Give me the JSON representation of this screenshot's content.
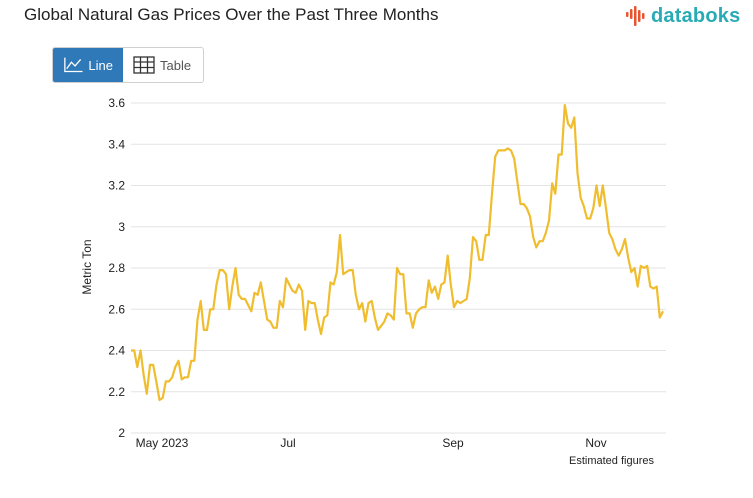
{
  "header": {
    "title": "Global Natural Gas Prices Over the Past Three Months",
    "brand": "databoks"
  },
  "toggle": {
    "line_label": "Line",
    "table_label": "Table",
    "active": "Line"
  },
  "colors": {
    "line": "#f0bd2f",
    "active_button": "#2f79b8",
    "brand": "#29abb5",
    "grid": "#e3e3e3"
  },
  "chart_data": {
    "type": "line",
    "title": "Global Natural Gas Prices Over the Past Three Months",
    "ylabel": "Metric Ton",
    "xlabel": "",
    "ylim": [
      2,
      3.6
    ],
    "yticks": [
      "2",
      "2.2",
      "2.4",
      "2.6",
      "2.8",
      "3",
      "3.2",
      "3.4",
      "3.6"
    ],
    "xticks": [
      "May 2023",
      "Jul",
      "Sep",
      "Nov"
    ],
    "note": "Estimated figures",
    "grid": true,
    "series": [
      {
        "values": [
          2.4,
          2.4,
          2.32,
          2.4,
          2.28,
          2.19,
          2.33,
          2.33,
          2.25,
          2.16,
          2.17,
          2.25,
          2.25,
          2.27,
          2.32,
          2.35,
          2.26,
          2.27,
          2.27,
          2.35,
          2.35,
          2.55,
          2.64,
          2.5,
          2.5,
          2.6,
          2.6,
          2.72,
          2.79,
          2.79,
          2.77,
          2.6,
          2.71,
          2.8,
          2.67,
          2.65,
          2.65,
          2.62,
          2.59,
          2.68,
          2.67,
          2.73,
          2.64,
          2.55,
          2.54,
          2.51,
          2.51,
          2.64,
          2.61,
          2.75,
          2.72,
          2.69,
          2.68,
          2.72,
          2.69,
          2.5,
          2.64,
          2.63,
          2.63,
          2.55,
          2.48,
          2.56,
          2.57,
          2.73,
          2.72,
          2.78,
          2.96,
          2.77,
          2.78,
          2.79,
          2.79,
          2.67,
          2.6,
          2.63,
          2.54,
          2.63,
          2.64,
          2.56,
          2.5,
          2.52,
          2.54,
          2.58,
          2.57,
          2.55,
          2.8,
          2.77,
          2.77,
          2.58,
          2.58,
          2.51,
          2.58,
          2.6,
          2.61,
          2.61,
          2.74,
          2.68,
          2.71,
          2.65,
          2.72,
          2.73,
          2.86,
          2.72,
          2.61,
          2.64,
          2.63,
          2.64,
          2.65,
          2.75,
          2.95,
          2.93,
          2.84,
          2.84,
          2.96,
          2.96,
          3.16,
          3.34,
          3.37,
          3.37,
          3.37,
          3.38,
          3.37,
          3.33,
          3.22,
          3.11,
          3.11,
          3.09,
          3.05,
          2.95,
          2.9,
          2.93,
          2.93,
          2.97,
          3.03,
          3.21,
          3.16,
          3.35,
          3.35,
          3.59,
          3.5,
          3.48,
          3.53,
          3.26,
          3.14,
          3.1,
          3.04,
          3.04,
          3.09,
          3.2,
          3.1,
          3.2,
          3.09,
          2.97,
          2.94,
          2.89,
          2.86,
          2.89,
          2.94,
          2.85,
          2.78,
          2.8,
          2.71,
          2.81,
          2.8,
          2.81,
          2.71,
          2.7,
          2.71,
          2.56,
          2.59
        ]
      }
    ]
  }
}
